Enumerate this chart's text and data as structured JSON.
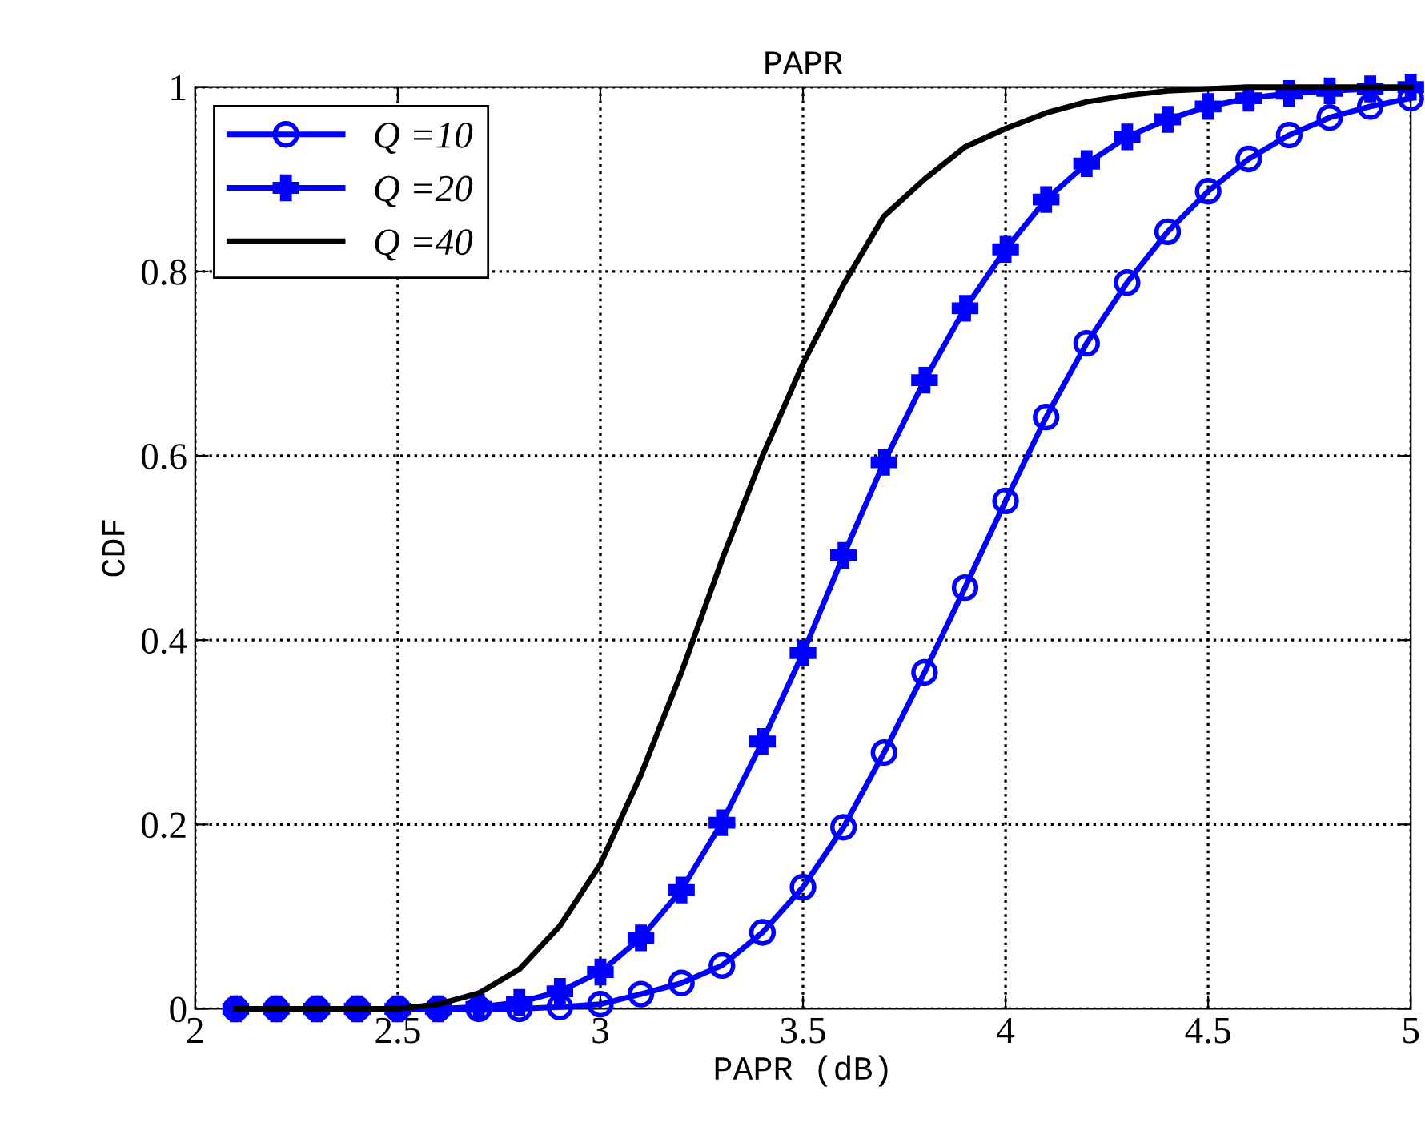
{
  "chart_data": {
    "type": "line",
    "title": "PAPR",
    "xlabel": "PAPR (dB)",
    "ylabel": "CDF",
    "xlim": [
      2,
      5
    ],
    "ylim": [
      0,
      1
    ],
    "xticks": [
      2,
      2.5,
      3,
      3.5,
      4,
      4.5,
      5
    ],
    "yticks": [
      0,
      0.2,
      0.4,
      0.6,
      0.8,
      1
    ],
    "grid": true,
    "legend": "top left",
    "series": [
      {
        "name": "Q =10",
        "color": "#0000ff",
        "marker": "circle",
        "x": [
          2.1,
          2.2,
          2.3,
          2.4,
          2.5,
          2.6,
          2.7,
          2.8,
          2.9,
          3.0,
          3.1,
          3.2,
          3.3,
          3.4,
          3.5,
          3.6,
          3.7,
          3.8,
          3.9,
          4.0,
          4.1,
          4.2,
          4.3,
          4.4,
          4.5,
          4.6,
          4.7,
          4.8,
          4.9,
          5.0
        ],
        "values": [
          0,
          0,
          0,
          0,
          0,
          0,
          0,
          0,
          0.002,
          0.005,
          0.016,
          0.028,
          0.047,
          0.083,
          0.132,
          0.197,
          0.278,
          0.365,
          0.457,
          0.551,
          0.642,
          0.722,
          0.788,
          0.843,
          0.887,
          0.922,
          0.948,
          0.967,
          0.979,
          0.988
        ]
      },
      {
        "name": "Q =20",
        "color": "#0000ff",
        "marker": "cross",
        "x": [
          2.1,
          2.2,
          2.3,
          2.4,
          2.5,
          2.6,
          2.7,
          2.8,
          2.9,
          3.0,
          3.1,
          3.2,
          3.3,
          3.4,
          3.5,
          3.6,
          3.7,
          3.8,
          3.9,
          4.0,
          4.1,
          4.2,
          4.3,
          4.4,
          4.5,
          4.6,
          4.7,
          4.8,
          4.9,
          5.0
        ],
        "values": [
          0,
          0,
          0,
          0,
          0,
          0,
          0.002,
          0.007,
          0.019,
          0.04,
          0.077,
          0.129,
          0.202,
          0.29,
          0.386,
          0.492,
          0.593,
          0.682,
          0.76,
          0.824,
          0.878,
          0.917,
          0.946,
          0.965,
          0.979,
          0.988,
          0.993,
          0.996,
          0.998,
          1
        ]
      },
      {
        "name": "Q =40",
        "color": "#000000",
        "marker": "none",
        "x": [
          2.1,
          2.3,
          2.5,
          2.6,
          2.7,
          2.8,
          2.9,
          3.0,
          3.1,
          3.2,
          3.3,
          3.4,
          3.5,
          3.6,
          3.7,
          3.8,
          3.9,
          4.0,
          4.1,
          4.2,
          4.3,
          4.4,
          4.5,
          4.6,
          4.8,
          5.0
        ],
        "values": [
          0,
          0,
          0,
          0.005,
          0.017,
          0.043,
          0.09,
          0.157,
          0.254,
          0.365,
          0.487,
          0.6,
          0.7,
          0.786,
          0.86,
          0.9,
          0.935,
          0.955,
          0.972,
          0.984,
          0.991,
          0.996,
          0.998,
          1,
          1,
          1
        ]
      }
    ]
  }
}
